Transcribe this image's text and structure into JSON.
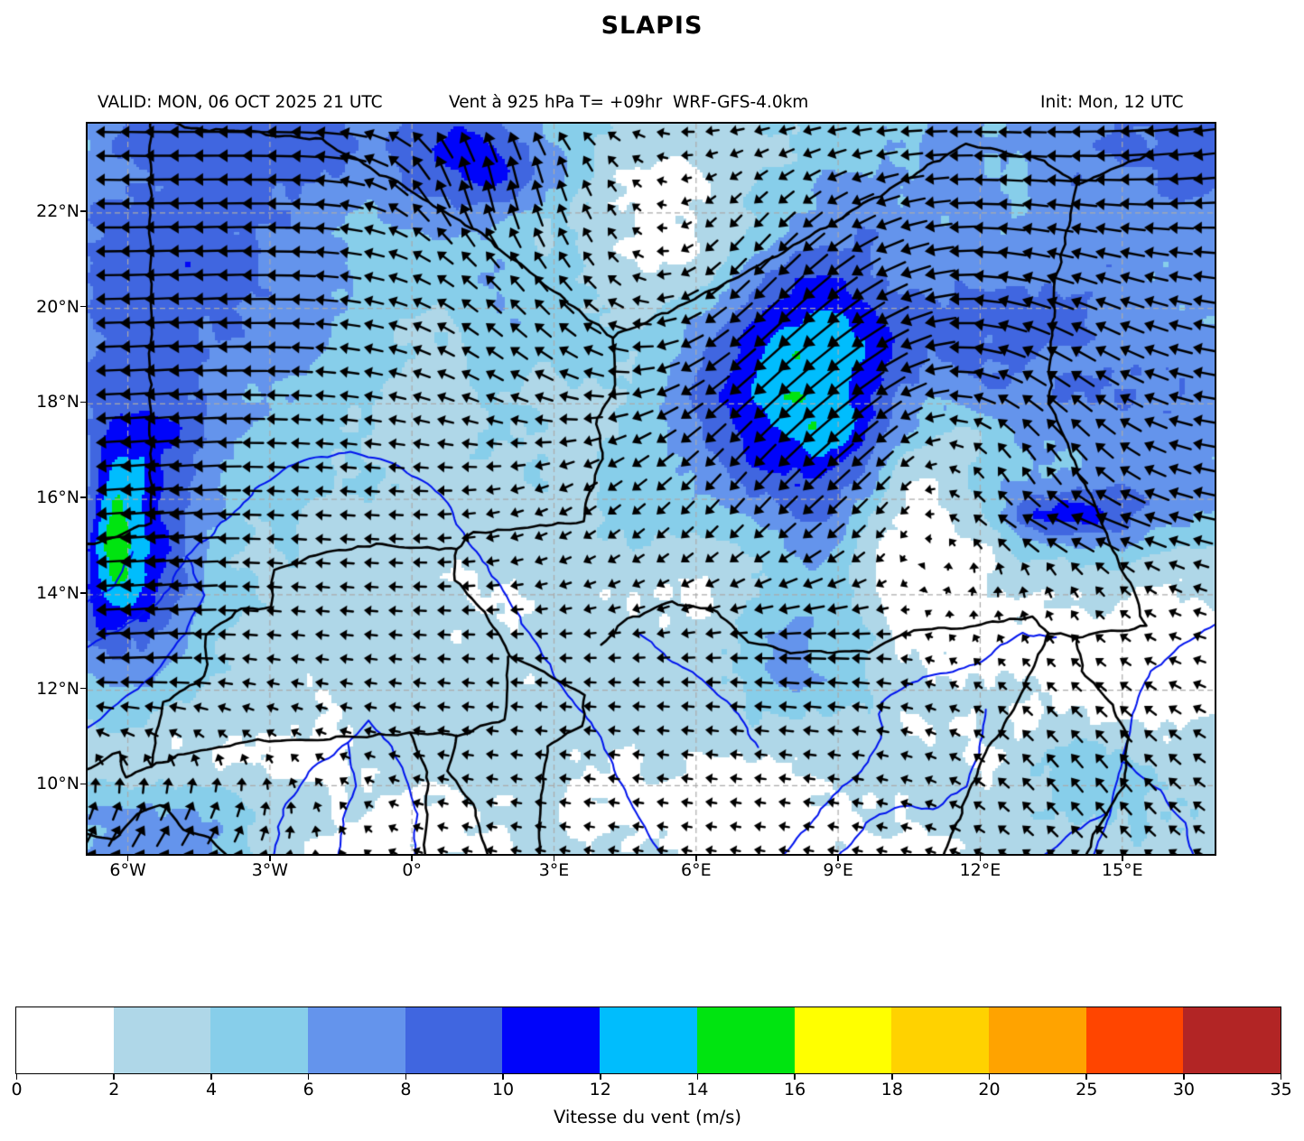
{
  "title": "SLAPIS",
  "header": {
    "valid": "VALID: MON, 06 OCT 2025 21 UTC",
    "variable": "Vent à 925 hPa T= +09hr  WRF-GFS-4.0km",
    "init": "Init: Mon, 12 UTC"
  },
  "map": {
    "extent": {
      "lon_min": -6.85,
      "lon_max": 16.95,
      "lat_min": 8.57,
      "lat_max": 23.87
    },
    "xticks": [
      {
        "label": "6°W",
        "lon": -6
      },
      {
        "label": "3°W",
        "lon": -3
      },
      {
        "label": "0°",
        "lon": 0
      },
      {
        "label": "3°E",
        "lon": 3
      },
      {
        "label": "6°E",
        "lon": 6
      },
      {
        "label": "9°E",
        "lon": 9
      },
      {
        "label": "12°E",
        "lon": 12
      },
      {
        "label": "15°E",
        "lon": 15
      }
    ],
    "yticks": [
      {
        "label": "22°N",
        "lat": 22
      },
      {
        "label": "20°N",
        "lat": 20
      },
      {
        "label": "18°N",
        "lat": 18
      },
      {
        "label": "16°N",
        "lat": 16
      },
      {
        "label": "14°N",
        "lat": 14
      },
      {
        "label": "12°N",
        "lat": 12
      },
      {
        "label": "10°N",
        "lat": 10
      }
    ],
    "grid_color": "#aaaaaa",
    "border_color": "#000000",
    "river_color": "#0013ee"
  },
  "colorbar": {
    "label": "Vitesse du vent (m/s)",
    "tick_labels": [
      "0",
      "2",
      "4",
      "6",
      "8",
      "10",
      "12",
      "14",
      "16",
      "18",
      "20",
      "25",
      "30",
      "35"
    ],
    "levels": [
      0,
      2,
      4,
      6,
      8,
      10,
      12,
      14,
      16,
      18,
      20,
      25,
      30,
      35
    ],
    "colors": [
      "#ffffff",
      "#afd7e8",
      "#87ceea",
      "#6494ec",
      "#4066e0",
      "#0004fa",
      "#00bdfd",
      "#00e410",
      "#ffff00",
      "#ffd200",
      "#ffa300",
      "#ff4500",
      "#b22525"
    ]
  }
}
